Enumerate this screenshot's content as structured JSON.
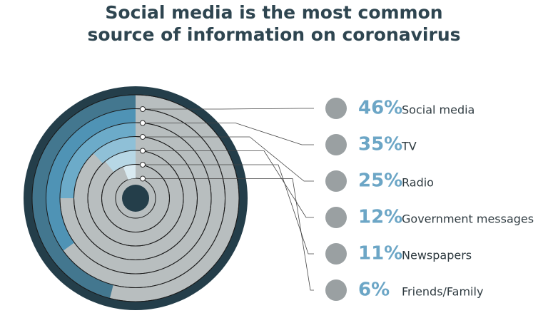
{
  "chart_data": {
    "type": "radial-bar",
    "title": "Social media is the most common source of information on coronavirus",
    "categories": [
      "Social media",
      "TV",
      "Radio",
      "Government messages",
      "Newspapers",
      "Friends/Family"
    ],
    "values": [
      46,
      35,
      25,
      12,
      11,
      6
    ],
    "value_labels": [
      "46%",
      "35%",
      "25%",
      "12%",
      "11%",
      "6%"
    ],
    "colors": [
      "#43778f",
      "#4f93b5",
      "#6cabc9",
      "#8fc0d7",
      "#b7d7e5",
      "#d9eaf1"
    ],
    "track_color": "#b8bebf"
  }
}
